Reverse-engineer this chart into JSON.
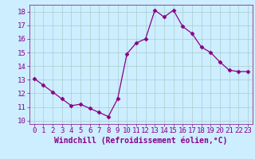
{
  "x": [
    0,
    1,
    2,
    3,
    4,
    5,
    6,
    7,
    8,
    9,
    10,
    11,
    12,
    13,
    14,
    15,
    16,
    17,
    18,
    19,
    20,
    21,
    22,
    23
  ],
  "y": [
    13.1,
    12.6,
    12.1,
    11.6,
    11.1,
    11.2,
    10.9,
    10.6,
    10.3,
    11.6,
    14.9,
    15.7,
    16.0,
    18.1,
    17.6,
    18.1,
    16.9,
    16.4,
    15.4,
    15.0,
    14.3,
    13.7,
    13.6,
    13.6
  ],
  "line_color": "#880088",
  "marker": "D",
  "marker_size": 2.5,
  "bg_color": "#cceeff",
  "grid_color": "#aacccc",
  "xlabel": "Windchill (Refroidissement éolien,°C)",
  "xlabel_fontsize": 7,
  "xlim": [
    -0.5,
    23.5
  ],
  "ylim": [
    9.75,
    18.5
  ],
  "yticks": [
    10,
    11,
    12,
    13,
    14,
    15,
    16,
    17,
    18
  ],
  "xticks": [
    0,
    1,
    2,
    3,
    4,
    5,
    6,
    7,
    8,
    9,
    10,
    11,
    12,
    13,
    14,
    15,
    16,
    17,
    18,
    19,
    20,
    21,
    22,
    23
  ],
  "tick_fontsize": 6.5
}
